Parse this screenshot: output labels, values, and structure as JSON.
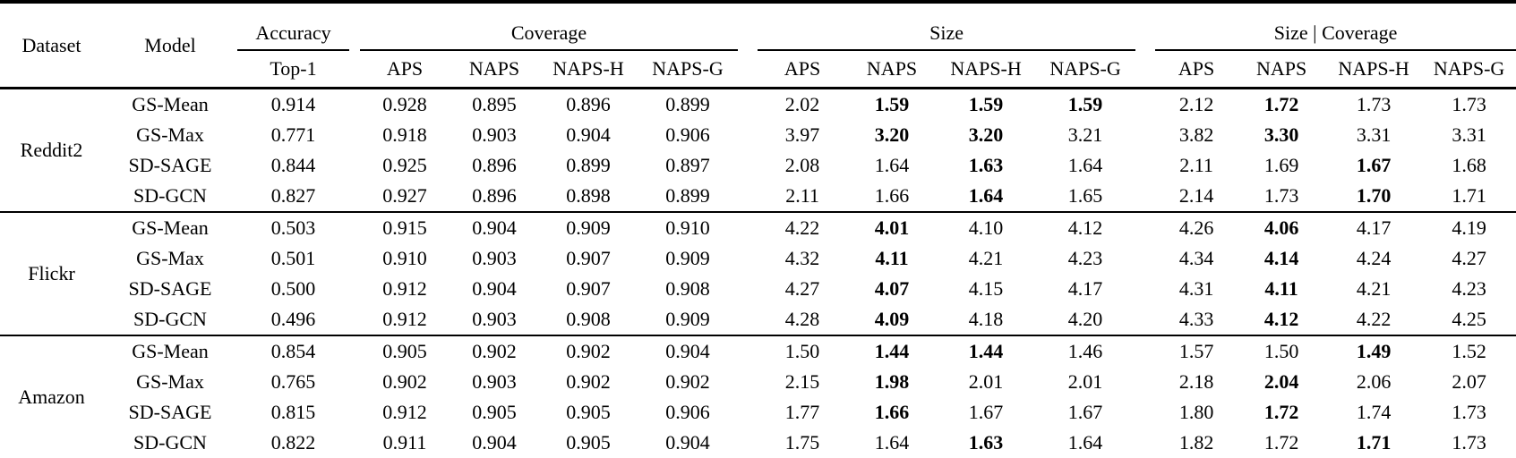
{
  "table": {
    "columns": {
      "dataset": "Dataset",
      "model": "Model",
      "groups": [
        {
          "label": "Accuracy",
          "cols": [
            "Top-1"
          ]
        },
        {
          "label": "Coverage",
          "cols": [
            "APS",
            "NAPS",
            "NAPS-H",
            "NAPS-G"
          ]
        },
        {
          "label": "Size",
          "cols": [
            "APS",
            "NAPS",
            "NAPS-H",
            "NAPS-G"
          ]
        },
        {
          "label": "Size | Coverage",
          "cols": [
            "APS",
            "NAPS",
            "NAPS-H",
            "NAPS-G"
          ]
        }
      ]
    },
    "blocks": [
      {
        "dataset": "Reddit2",
        "rows": [
          {
            "model": "GS-Mean",
            "values": [
              "0.914",
              "0.928",
              "0.895",
              "0.896",
              "0.899",
              "2.02",
              "1.59",
              "1.59",
              "1.59",
              "2.12",
              "1.72",
              "1.73",
              "1.73"
            ],
            "bold": [
              6,
              7,
              8,
              10
            ]
          },
          {
            "model": "GS-Max",
            "values": [
              "0.771",
              "0.918",
              "0.903",
              "0.904",
              "0.906",
              "3.97",
              "3.20",
              "3.20",
              "3.21",
              "3.82",
              "3.30",
              "3.31",
              "3.31"
            ],
            "bold": [
              6,
              7,
              10
            ]
          },
          {
            "model": "SD-SAGE",
            "values": [
              "0.844",
              "0.925",
              "0.896",
              "0.899",
              "0.897",
              "2.08",
              "1.64",
              "1.63",
              "1.64",
              "2.11",
              "1.69",
              "1.67",
              "1.68"
            ],
            "bold": [
              7,
              11
            ]
          },
          {
            "model": "SD-GCN",
            "values": [
              "0.827",
              "0.927",
              "0.896",
              "0.898",
              "0.899",
              "2.11",
              "1.66",
              "1.64",
              "1.65",
              "2.14",
              "1.73",
              "1.70",
              "1.71"
            ],
            "bold": [
              7,
              11
            ]
          }
        ]
      },
      {
        "dataset": "Flickr",
        "rows": [
          {
            "model": "GS-Mean",
            "values": [
              "0.503",
              "0.915",
              "0.904",
              "0.909",
              "0.910",
              "4.22",
              "4.01",
              "4.10",
              "4.12",
              "4.26",
              "4.06",
              "4.17",
              "4.19"
            ],
            "bold": [
              6,
              10
            ]
          },
          {
            "model": "GS-Max",
            "values": [
              "0.501",
              "0.910",
              "0.903",
              "0.907",
              "0.909",
              "4.32",
              "4.11",
              "4.21",
              "4.23",
              "4.34",
              "4.14",
              "4.24",
              "4.27"
            ],
            "bold": [
              6,
              10
            ]
          },
          {
            "model": "SD-SAGE",
            "values": [
              "0.500",
              "0.912",
              "0.904",
              "0.907",
              "0.908",
              "4.27",
              "4.07",
              "4.15",
              "4.17",
              "4.31",
              "4.11",
              "4.21",
              "4.23"
            ],
            "bold": [
              6,
              10
            ]
          },
          {
            "model": "SD-GCN",
            "values": [
              "0.496",
              "0.912",
              "0.903",
              "0.908",
              "0.909",
              "4.28",
              "4.09",
              "4.18",
              "4.20",
              "4.33",
              "4.12",
              "4.22",
              "4.25"
            ],
            "bold": [
              6,
              10
            ]
          }
        ]
      },
      {
        "dataset": "Amazon",
        "rows": [
          {
            "model": "GS-Mean",
            "values": [
              "0.854",
              "0.905",
              "0.902",
              "0.902",
              "0.904",
              "1.50",
              "1.44",
              "1.44",
              "1.46",
              "1.57",
              "1.50",
              "1.49",
              "1.52"
            ],
            "bold": [
              6,
              7,
              11
            ]
          },
          {
            "model": "GS-Max",
            "values": [
              "0.765",
              "0.902",
              "0.903",
              "0.902",
              "0.902",
              "2.15",
              "1.98",
              "2.01",
              "2.01",
              "2.18",
              "2.04",
              "2.06",
              "2.07"
            ],
            "bold": [
              6,
              10
            ]
          },
          {
            "model": "SD-SAGE",
            "values": [
              "0.815",
              "0.912",
              "0.905",
              "0.905",
              "0.906",
              "1.77",
              "1.66",
              "1.67",
              "1.67",
              "1.80",
              "1.72",
              "1.74",
              "1.73"
            ],
            "bold": [
              6,
              10
            ]
          },
          {
            "model": "SD-GCN",
            "values": [
              "0.822",
              "0.911",
              "0.904",
              "0.905",
              "0.904",
              "1.75",
              "1.64",
              "1.63",
              "1.64",
              "1.82",
              "1.72",
              "1.71",
              "1.73"
            ],
            "bold": [
              7,
              11
            ]
          }
        ]
      }
    ]
  }
}
